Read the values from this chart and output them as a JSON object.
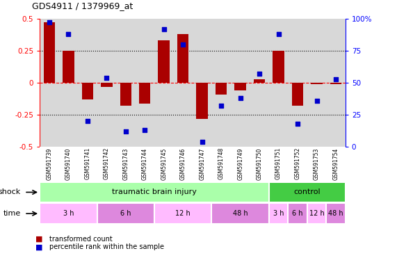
{
  "title": "GDS4911 / 1379969_at",
  "samples": [
    "GSM591739",
    "GSM591740",
    "GSM591741",
    "GSM591742",
    "GSM591743",
    "GSM591744",
    "GSM591745",
    "GSM591746",
    "GSM591747",
    "GSM591748",
    "GSM591749",
    "GSM591750",
    "GSM591751",
    "GSM591752",
    "GSM591753",
    "GSM591754"
  ],
  "bar_values": [
    0.47,
    0.25,
    -0.13,
    -0.03,
    -0.18,
    -0.16,
    0.33,
    0.38,
    -0.28,
    -0.09,
    -0.06,
    0.03,
    0.25,
    -0.18,
    -0.01,
    -0.01
  ],
  "dot_values": [
    97,
    88,
    20,
    54,
    12,
    13,
    92,
    80,
    4,
    32,
    38,
    57,
    88,
    18,
    36,
    53
  ],
  "ylim": [
    -0.5,
    0.5
  ],
  "y2lim": [
    0,
    100
  ],
  "yticks": [
    -0.5,
    -0.25,
    0,
    0.25,
    0.5
  ],
  "y2ticks": [
    0,
    25,
    50,
    75,
    100
  ],
  "hlines": [
    0.25,
    -0.25
  ],
  "bar_color": "#aa0000",
  "dot_color": "#0000cc",
  "bar_width": 0.6,
  "shock_label": "shock",
  "time_label": "time",
  "legend_bar": "transformed count",
  "legend_dot": "percentile rank within the sample",
  "plot_bg": "#d8d8d8",
  "tbi_color": "#aaffaa",
  "control_color": "#44cc44",
  "time_colors": [
    "#ffbbff",
    "#dd88dd",
    "#ffbbff",
    "#dd88dd"
  ],
  "tbi_time_regions": [
    {
      "label": "3 h",
      "start": 0,
      "end": 3
    },
    {
      "label": "6 h",
      "start": 3,
      "end": 6
    },
    {
      "label": "12 h",
      "start": 6,
      "end": 9
    },
    {
      "label": "48 h",
      "start": 9,
      "end": 12
    }
  ],
  "ctrl_time_regions": [
    {
      "label": "3 h",
      "start": 12,
      "end": 13
    },
    {
      "label": "6 h",
      "start": 13,
      "end": 14
    },
    {
      "label": "12 h",
      "start": 14,
      "end": 15
    },
    {
      "label": "48 h",
      "start": 15,
      "end": 16
    }
  ]
}
